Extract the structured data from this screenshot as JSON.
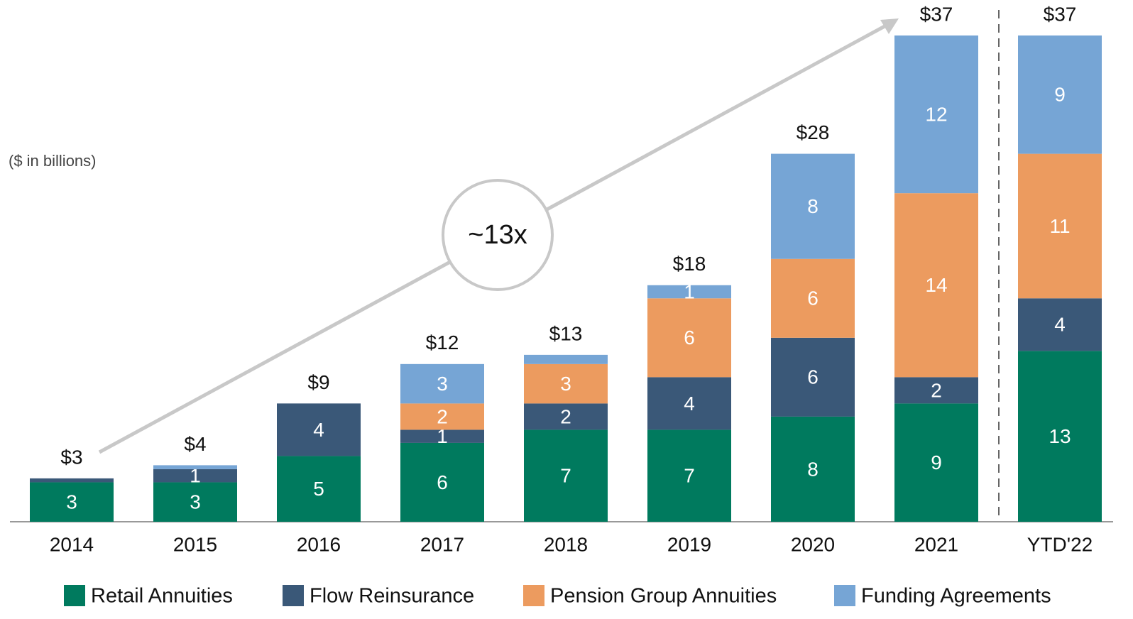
{
  "chart_data": {
    "type": "stacked_bar",
    "subtitle": "($ in billions)",
    "annotation": "~13x",
    "categories": [
      "2014",
      "2015",
      "2016",
      "2017",
      "2018",
      "2019",
      "2020",
      "2021",
      "YTD'22"
    ],
    "series": [
      {
        "name": "Retail Annuities",
        "color": "#007a5e",
        "values": [
          3,
          3,
          5,
          6,
          7,
          7,
          8,
          9,
          13
        ]
      },
      {
        "name": "Flow Reinsurance",
        "color": "#3a5878",
        "values": [
          0.3,
          1,
          4,
          1,
          2,
          4,
          6,
          2,
          4
        ]
      },
      {
        "name": "Pension Group Annuities",
        "color": "#ec9b5f",
        "values": [
          0,
          0,
          0,
          2,
          3,
          6,
          6,
          14,
          11
        ]
      },
      {
        "name": "Funding Agreements",
        "color": "#76a5d5",
        "values": [
          0,
          0.3,
          0,
          3,
          0.7,
          1,
          8,
          12,
          9
        ]
      }
    ],
    "totals": {
      "values": [
        3,
        4,
        9,
        12,
        13,
        18,
        28,
        37,
        37
      ],
      "value_labels": [
        "$3",
        "$4",
        "$9",
        "$12",
        "$13",
        "$18",
        "$28",
        "$37",
        "$37"
      ]
    }
  }
}
